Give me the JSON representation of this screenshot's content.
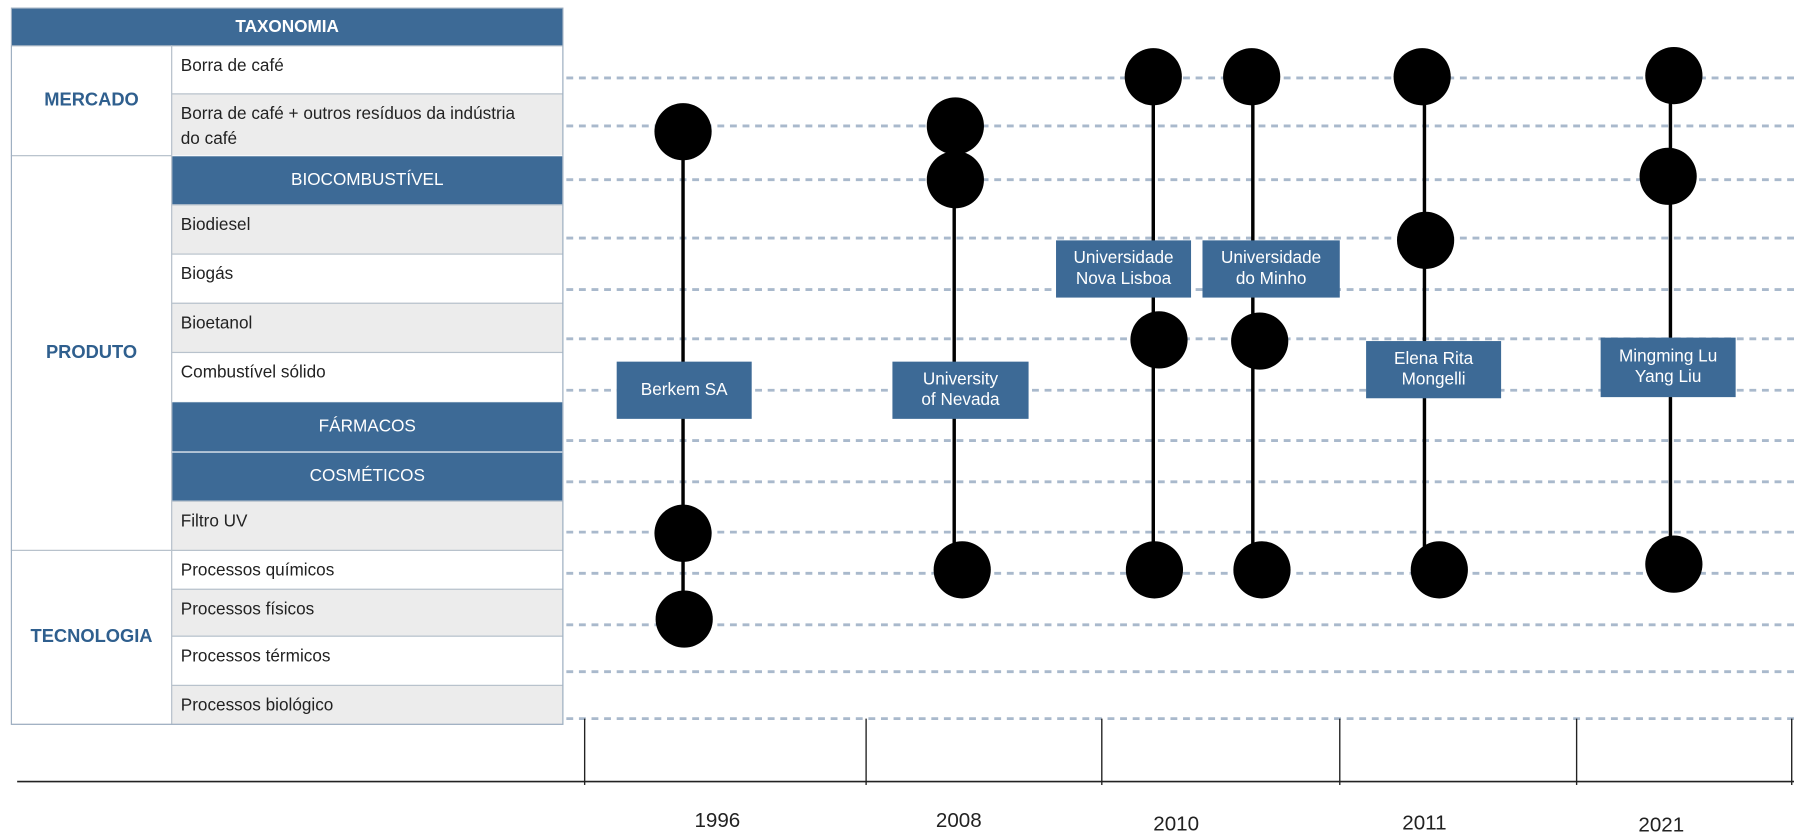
{
  "header": {
    "title": "TAXONOMIA"
  },
  "groups": [
    "MERCADO",
    "PRODUTO",
    "TECNOLOGIA"
  ],
  "rows": [
    [
      "Borra de café"
    ],
    [
      "Borra de café + outros resíduos da indústria",
      "do café"
    ],
    [
      "BIOCOMBUSTÍVEL"
    ],
    [
      "Biodiesel"
    ],
    [
      "Biogás"
    ],
    [
      "Bioetanol"
    ],
    [
      "Combustível sólido"
    ],
    [
      "FÁRMACOS"
    ],
    [
      "COSMÉTICOS"
    ],
    [
      "Filtro UV"
    ],
    [
      "Processos químicos"
    ],
    [
      "Processos físicos"
    ],
    [
      "Processos térmicos"
    ],
    [
      "Processos biológico"
    ]
  ],
  "timeline": {
    "years": [
      "1996",
      "2008",
      "2010",
      "2011",
      "2021"
    ],
    "entities": [
      [
        "Berkem SA"
      ],
      [
        "University",
        "of Nevada"
      ],
      [
        "Universidade",
        "Nova Lisboa"
      ],
      [
        "Universidade",
        "do Minho"
      ],
      [
        "Elena Rita",
        "Mongelli"
      ],
      [
        "Mingming Lu",
        "Yang Liu"
      ]
    ]
  }
}
